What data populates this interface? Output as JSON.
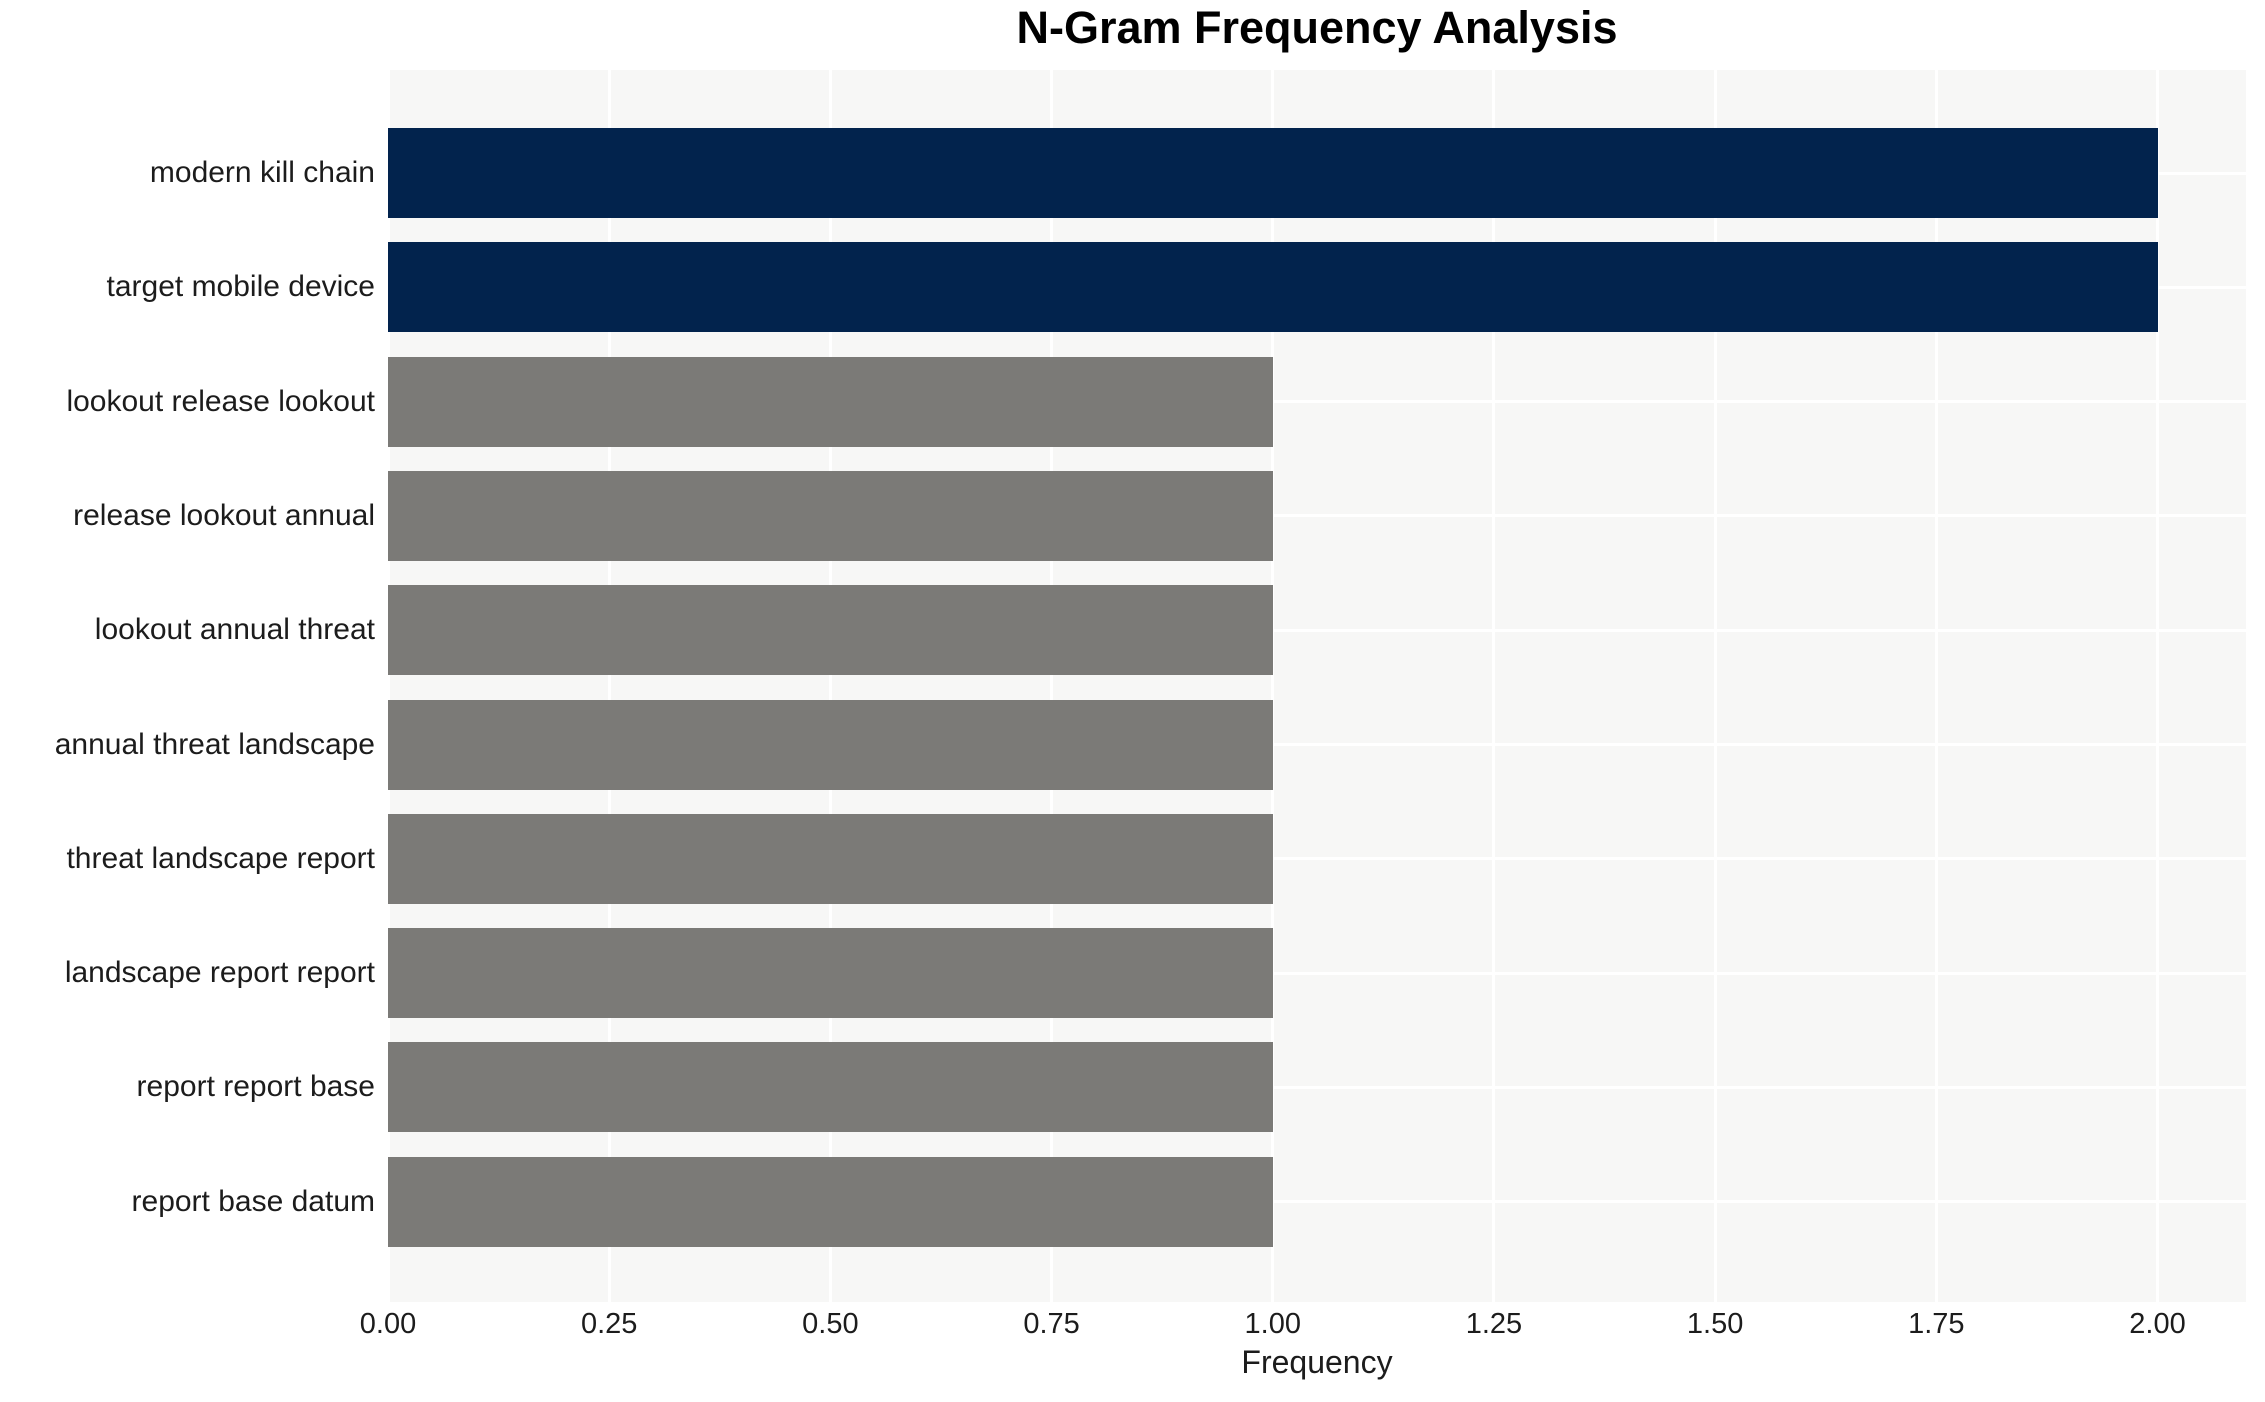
{
  "chart_data": {
    "type": "bar",
    "orientation": "horizontal",
    "title": "N-Gram Frequency Analysis",
    "xlabel": "Frequency",
    "ylabel": "",
    "categories": [
      "modern kill chain",
      "target mobile device",
      "lookout release lookout",
      "release lookout annual",
      "lookout annual threat",
      "annual threat landscape",
      "threat landscape report",
      "landscape report report",
      "report report base",
      "report base datum"
    ],
    "values": [
      2,
      2,
      1,
      1,
      1,
      1,
      1,
      1,
      1,
      1
    ],
    "bar_colors": [
      "#02234d",
      "#02234d",
      "#7b7a77",
      "#7b7a77",
      "#7b7a77",
      "#7b7a77",
      "#7b7a77",
      "#7b7a77",
      "#7b7a77",
      "#7b7a77"
    ],
    "xlim": [
      0,
      2.1
    ],
    "xticks": [
      0,
      0.25,
      0.5,
      0.75,
      1.0,
      1.25,
      1.5,
      1.75,
      2.0
    ],
    "xtick_labels": [
      "0.00",
      "0.25",
      "0.50",
      "0.75",
      "1.00",
      "1.25",
      "1.50",
      "1.75",
      "2.00"
    ],
    "grid": true,
    "legend": false,
    "colors": {
      "highlight_bar": "#02234d",
      "base_bar": "#7b7a77",
      "plot_background": "#f7f7f6",
      "gridline": "#ffffff",
      "text": "#1c1c1c",
      "title": "#000000"
    }
  }
}
